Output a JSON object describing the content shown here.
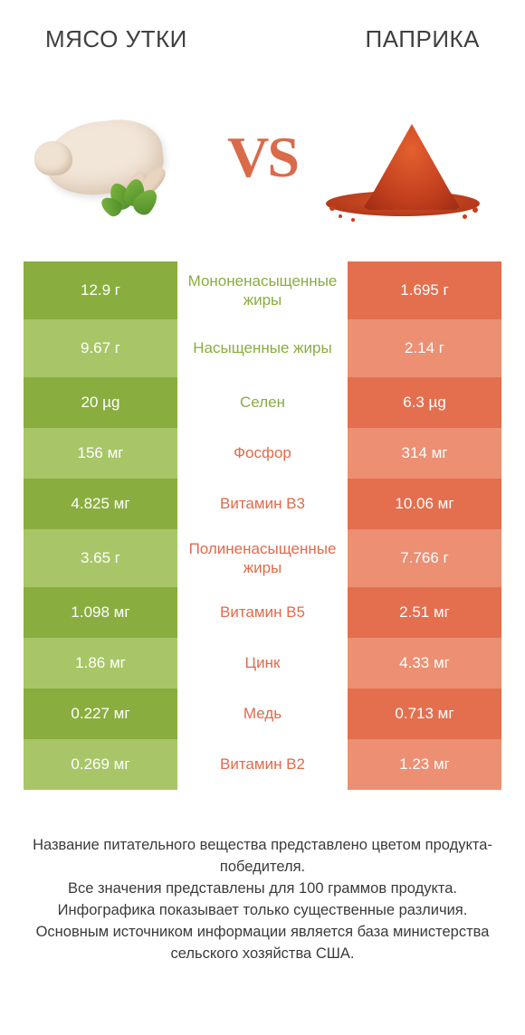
{
  "colors": {
    "green_dark": "#8aad3f",
    "green_light": "#a8c667",
    "orange_dark": "#e36f4f",
    "orange_light": "#ec8f73",
    "label_green": "#8aad3f",
    "label_orange": "#e26a4a",
    "vs_color": "#d96b4a",
    "background": "#ffffff",
    "title_color": "#404040",
    "footer_color": "#3b3b3b"
  },
  "typography": {
    "title_fontsize": 26,
    "vs_fontsize": 64,
    "cell_fontsize": 17,
    "footer_fontsize": 16.5
  },
  "header": {
    "left_title": "МЯСО УТКИ",
    "right_title": "ПАПРИКА"
  },
  "vs_label": "VS",
  "rows": [
    {
      "left": "12.9 г",
      "label": "Мононенасыщенные жиры",
      "right": "1.695 г",
      "winner": "left",
      "tall": true
    },
    {
      "left": "9.67 г",
      "label": "Насыщенные жиры",
      "right": "2.14 г",
      "winner": "left",
      "tall": true
    },
    {
      "left": "20 µg",
      "label": "Селен",
      "right": "6.3 µg",
      "winner": "left",
      "tall": false
    },
    {
      "left": "156 мг",
      "label": "Фосфор",
      "right": "314 мг",
      "winner": "right",
      "tall": false
    },
    {
      "left": "4.825 мг",
      "label": "Витамин B3",
      "right": "10.06 мг",
      "winner": "right",
      "tall": false
    },
    {
      "left": "3.65 г",
      "label": "Полиненасыщенные жиры",
      "right": "7.766 г",
      "winner": "right",
      "tall": true
    },
    {
      "left": "1.098 мг",
      "label": "Витамин B5",
      "right": "2.51 мг",
      "winner": "right",
      "tall": false
    },
    {
      "left": "1.86 мг",
      "label": "Цинк",
      "right": "4.33 мг",
      "winner": "right",
      "tall": false
    },
    {
      "left": "0.227 мг",
      "label": "Медь",
      "right": "0.713 мг",
      "winner": "right",
      "tall": false
    },
    {
      "left": "0.269 мг",
      "label": "Витамин B2",
      "right": "1.23 мг",
      "winner": "right",
      "tall": false
    }
  ],
  "footer_text": "Название питательного вещества представлено цветом продукта-победителя.\nВсе значения представлены для 100 граммов продукта.\nИнфографика показывает только существенные различия.\nОсновным источником информации является база министерства сельского хозяйства США."
}
